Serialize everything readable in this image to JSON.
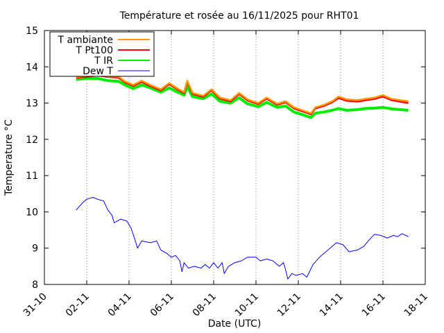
{
  "chart_data": {
    "type": "line",
    "title": "Température et rosée au 16/11/2025 pour RHT01",
    "xlabel": "Date (UTC)",
    "ylabel": "Temperature °C",
    "xlim_days": [
      0,
      18
    ],
    "ylim": [
      8,
      15
    ],
    "x_ticks": [
      {
        "day": 0,
        "label": "31-10"
      },
      {
        "day": 2,
        "label": "02-11"
      },
      {
        "day": 4,
        "label": "04-11"
      },
      {
        "day": 6,
        "label": "06-11"
      },
      {
        "day": 8,
        "label": "08-11"
      },
      {
        "day": 10,
        "label": "10-11"
      },
      {
        "day": 12,
        "label": "12-11"
      },
      {
        "day": 14,
        "label": "14-11"
      },
      {
        "day": 16,
        "label": "16-11"
      },
      {
        "day": 18,
        "label": "18-11"
      }
    ],
    "y_ticks": [
      8,
      9,
      10,
      11,
      12,
      13,
      14,
      15
    ],
    "grid": "vertical-dotted",
    "legend_position": "top-left",
    "series": [
      {
        "name": "T ambiante",
        "color": "#ff9900",
        "points": [
          [
            1.5,
            13.72
          ],
          [
            2.0,
            13.75
          ],
          [
            2.5,
            13.78
          ],
          [
            3.0,
            13.74
          ],
          [
            3.5,
            13.73
          ],
          [
            3.8,
            13.6
          ],
          [
            4.2,
            13.5
          ],
          [
            4.6,
            13.62
          ],
          [
            5.0,
            13.5
          ],
          [
            5.5,
            13.38
          ],
          [
            5.9,
            13.55
          ],
          [
            6.3,
            13.4
          ],
          [
            6.6,
            13.3
          ],
          [
            6.75,
            13.62
          ],
          [
            7.0,
            13.28
          ],
          [
            7.5,
            13.2
          ],
          [
            7.9,
            13.38
          ],
          [
            8.3,
            13.15
          ],
          [
            8.8,
            13.08
          ],
          [
            9.2,
            13.28
          ],
          [
            9.6,
            13.1
          ],
          [
            10.1,
            13.0
          ],
          [
            10.5,
            13.15
          ],
          [
            11.0,
            12.98
          ],
          [
            11.4,
            13.05
          ],
          [
            11.8,
            12.88
          ],
          [
            12.2,
            12.8
          ],
          [
            12.6,
            12.72
          ],
          [
            12.8,
            12.88
          ],
          [
            13.2,
            12.95
          ],
          [
            13.6,
            13.05
          ],
          [
            13.9,
            13.18
          ],
          [
            14.3,
            13.1
          ],
          [
            14.8,
            13.08
          ],
          [
            15.2,
            13.12
          ],
          [
            15.6,
            13.15
          ],
          [
            16.0,
            13.22
          ],
          [
            16.4,
            13.12
          ],
          [
            16.8,
            13.08
          ],
          [
            17.2,
            13.05
          ]
        ]
      },
      {
        "name": "T Pt100",
        "color": "#ff0000",
        "points": [
          [
            1.5,
            13.7
          ],
          [
            2.0,
            13.72
          ],
          [
            2.5,
            13.76
          ],
          [
            3.0,
            13.72
          ],
          [
            3.5,
            13.7
          ],
          [
            3.8,
            13.57
          ],
          [
            4.2,
            13.47
          ],
          [
            4.6,
            13.58
          ],
          [
            5.0,
            13.47
          ],
          [
            5.5,
            13.35
          ],
          [
            5.9,
            13.52
          ],
          [
            6.3,
            13.37
          ],
          [
            6.6,
            13.27
          ],
          [
            6.75,
            13.58
          ],
          [
            7.0,
            13.25
          ],
          [
            7.5,
            13.17
          ],
          [
            7.9,
            13.35
          ],
          [
            8.3,
            13.12
          ],
          [
            8.8,
            13.05
          ],
          [
            9.2,
            13.25
          ],
          [
            9.6,
            13.07
          ],
          [
            10.1,
            12.97
          ],
          [
            10.5,
            13.12
          ],
          [
            11.0,
            12.95
          ],
          [
            11.4,
            13.02
          ],
          [
            11.8,
            12.85
          ],
          [
            12.2,
            12.77
          ],
          [
            12.6,
            12.69
          ],
          [
            12.8,
            12.85
          ],
          [
            13.2,
            12.92
          ],
          [
            13.6,
            13.02
          ],
          [
            13.9,
            13.14
          ],
          [
            14.3,
            13.06
          ],
          [
            14.8,
            13.04
          ],
          [
            15.2,
            13.08
          ],
          [
            15.6,
            13.11
          ],
          [
            16.0,
            13.18
          ],
          [
            16.4,
            13.08
          ],
          [
            16.8,
            13.04
          ],
          [
            17.2,
            13.0
          ]
        ]
      },
      {
        "name": "T IR",
        "color": "#00ee00",
        "points": [
          [
            1.5,
            13.65
          ],
          [
            2.0,
            13.68
          ],
          [
            2.5,
            13.68
          ],
          [
            3.0,
            13.62
          ],
          [
            3.5,
            13.6
          ],
          [
            3.8,
            13.5
          ],
          [
            4.2,
            13.4
          ],
          [
            4.6,
            13.5
          ],
          [
            5.0,
            13.42
          ],
          [
            5.5,
            13.3
          ],
          [
            5.9,
            13.42
          ],
          [
            6.3,
            13.3
          ],
          [
            6.6,
            13.22
          ],
          [
            6.75,
            13.45
          ],
          [
            7.0,
            13.18
          ],
          [
            7.5,
            13.12
          ],
          [
            7.9,
            13.25
          ],
          [
            8.3,
            13.05
          ],
          [
            8.8,
            13.0
          ],
          [
            9.2,
            13.15
          ],
          [
            9.6,
            12.98
          ],
          [
            10.1,
            12.9
          ],
          [
            10.5,
            13.02
          ],
          [
            11.0,
            12.88
          ],
          [
            11.4,
            12.92
          ],
          [
            11.8,
            12.75
          ],
          [
            12.2,
            12.68
          ],
          [
            12.6,
            12.6
          ],
          [
            12.8,
            12.72
          ],
          [
            13.2,
            12.75
          ],
          [
            13.6,
            12.8
          ],
          [
            13.9,
            12.85
          ],
          [
            14.3,
            12.8
          ],
          [
            14.8,
            12.82
          ],
          [
            15.2,
            12.85
          ],
          [
            15.6,
            12.86
          ],
          [
            16.0,
            12.88
          ],
          [
            16.4,
            12.84
          ],
          [
            16.8,
            12.82
          ],
          [
            17.2,
            12.8
          ]
        ]
      },
      {
        "name": "Dew T",
        "color": "#0000ff",
        "points": [
          [
            1.5,
            10.05
          ],
          [
            1.8,
            10.25
          ],
          [
            2.0,
            10.35
          ],
          [
            2.3,
            10.4
          ],
          [
            2.5,
            10.35
          ],
          [
            2.8,
            10.3
          ],
          [
            3.0,
            10.05
          ],
          [
            3.2,
            9.9
          ],
          [
            3.3,
            9.7
          ],
          [
            3.6,
            9.8
          ],
          [
            3.9,
            9.75
          ],
          [
            4.1,
            9.55
          ],
          [
            4.3,
            9.2
          ],
          [
            4.4,
            9.0
          ],
          [
            4.6,
            9.2
          ],
          [
            5.0,
            9.15
          ],
          [
            5.3,
            9.2
          ],
          [
            5.5,
            8.95
          ],
          [
            5.8,
            8.85
          ],
          [
            6.0,
            8.75
          ],
          [
            6.2,
            8.8
          ],
          [
            6.4,
            8.65
          ],
          [
            6.5,
            8.35
          ],
          [
            6.6,
            8.6
          ],
          [
            6.8,
            8.45
          ],
          [
            7.1,
            8.5
          ],
          [
            7.4,
            8.45
          ],
          [
            7.6,
            8.55
          ],
          [
            7.8,
            8.45
          ],
          [
            8.0,
            8.6
          ],
          [
            8.2,
            8.45
          ],
          [
            8.4,
            8.6
          ],
          [
            8.5,
            8.3
          ],
          [
            8.7,
            8.5
          ],
          [
            9.0,
            8.6
          ],
          [
            9.3,
            8.65
          ],
          [
            9.6,
            8.75
          ],
          [
            10.0,
            8.75
          ],
          [
            10.2,
            8.65
          ],
          [
            10.5,
            8.7
          ],
          [
            10.8,
            8.65
          ],
          [
            11.1,
            8.5
          ],
          [
            11.3,
            8.6
          ],
          [
            11.4,
            8.4
          ],
          [
            11.5,
            8.15
          ],
          [
            11.7,
            8.3
          ],
          [
            11.9,
            8.25
          ],
          [
            12.2,
            8.3
          ],
          [
            12.4,
            8.2
          ],
          [
            12.7,
            8.55
          ],
          [
            13.0,
            8.75
          ],
          [
            13.3,
            8.9
          ],
          [
            13.6,
            9.05
          ],
          [
            13.8,
            9.15
          ],
          [
            14.1,
            9.1
          ],
          [
            14.4,
            8.9
          ],
          [
            14.8,
            8.95
          ],
          [
            15.1,
            9.05
          ],
          [
            15.3,
            9.2
          ],
          [
            15.6,
            9.38
          ],
          [
            15.9,
            9.35
          ],
          [
            16.2,
            9.28
          ],
          [
            16.5,
            9.35
          ],
          [
            16.7,
            9.32
          ],
          [
            16.9,
            9.4
          ],
          [
            17.2,
            9.32
          ]
        ]
      }
    ]
  }
}
